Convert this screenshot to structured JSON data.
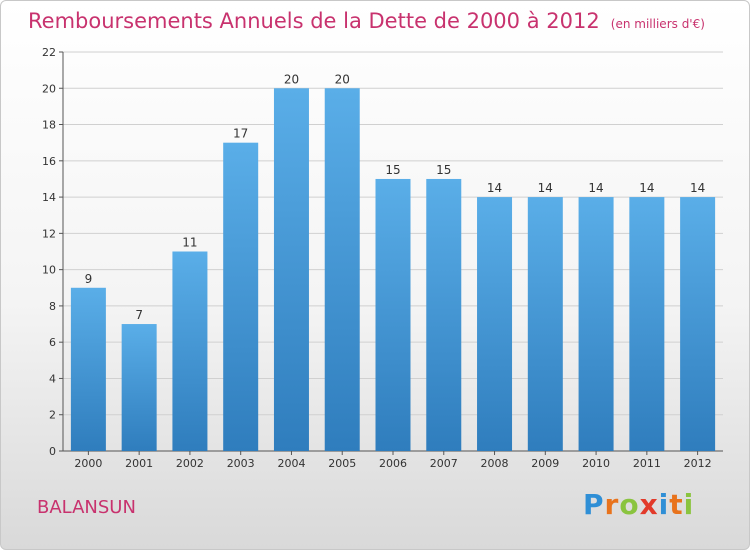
{
  "title": "Remboursements Annuels de la Dette de 2000 à 2012",
  "unit": "(en milliers d'€)",
  "commune": "BALANSUN",
  "logo": {
    "letters": [
      "P",
      "r",
      "o",
      "x",
      "i",
      "t",
      "i"
    ],
    "colors": [
      "#2f8fd6",
      "#e8731c",
      "#8ac43f",
      "#e23a2a",
      "#2f8fd6",
      "#e8731c",
      "#8ac43f"
    ]
  },
  "colors": {
    "title": "#c8326e",
    "bar_top": "#5aaee8",
    "bar_bottom": "#2f7dbd",
    "grid": "#d0d0d0"
  },
  "chart_data": {
    "type": "bar",
    "title": "Remboursements Annuels de la Dette de 2000 à 2012",
    "xlabel": "",
    "ylabel": "(en milliers d'€)",
    "categories": [
      "2000",
      "2001",
      "2002",
      "2003",
      "2004",
      "2005",
      "2006",
      "2007",
      "2008",
      "2009",
      "2010",
      "2011",
      "2012"
    ],
    "values": [
      9,
      7,
      11,
      17,
      20,
      20,
      15,
      15,
      14,
      14,
      14,
      14,
      14
    ],
    "ylim": [
      0,
      22
    ],
    "yticks": [
      0,
      2,
      4,
      6,
      8,
      10,
      12,
      14,
      16,
      18,
      20,
      22
    ],
    "grid": true
  }
}
